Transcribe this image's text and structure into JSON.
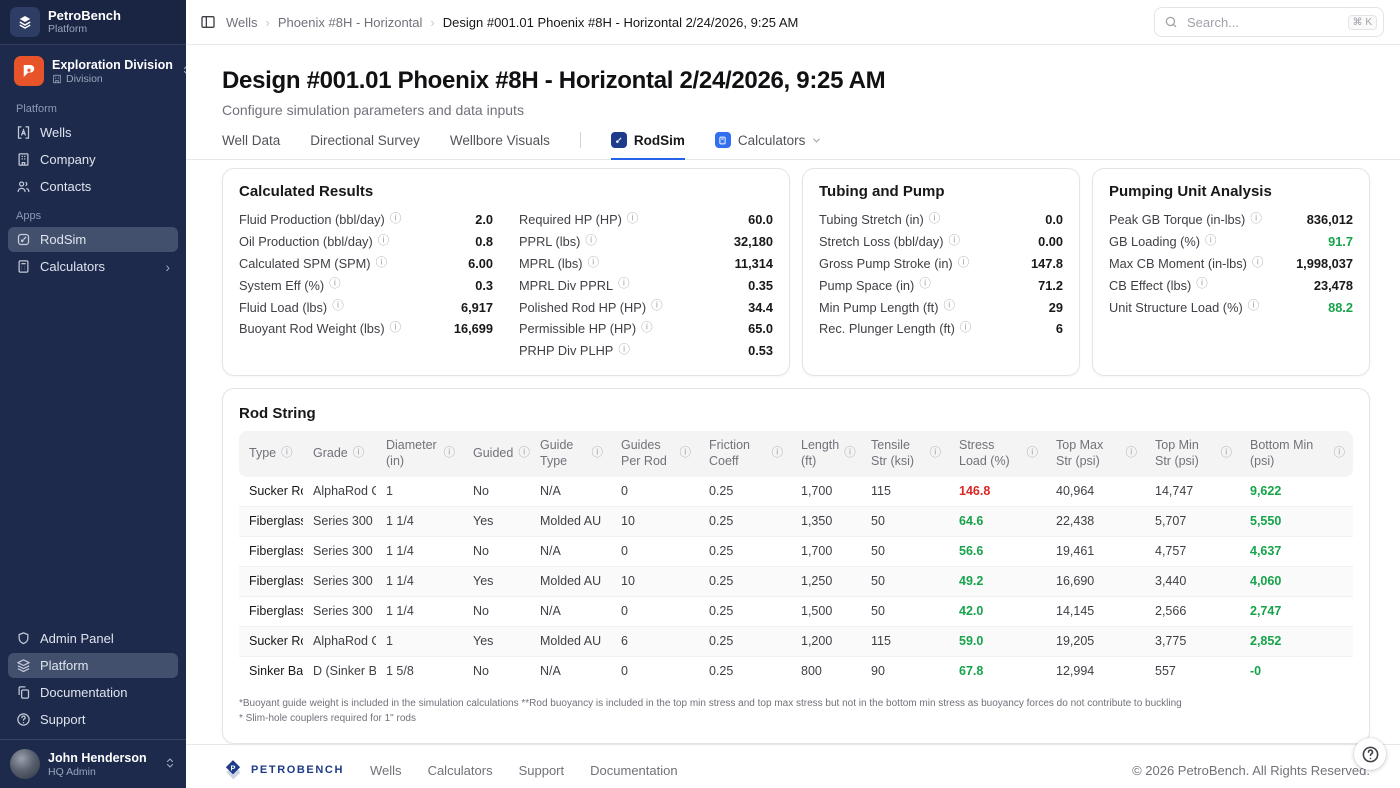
{
  "sidebar": {
    "brand": {
      "name": "PetroBench",
      "subtitle": "Platform"
    },
    "team": {
      "name": "Exploration Division",
      "type": "Division"
    },
    "groups": [
      {
        "label": "Platform",
        "items": [
          {
            "label": "Wells"
          },
          {
            "label": "Company"
          },
          {
            "label": "Contacts"
          }
        ]
      },
      {
        "label": "Apps",
        "items": [
          {
            "label": "RodSim"
          },
          {
            "label": "Calculators"
          }
        ]
      }
    ],
    "footer_items": [
      {
        "label": "Admin Panel"
      },
      {
        "label": "Platform"
      },
      {
        "label": "Documentation"
      },
      {
        "label": "Support"
      }
    ],
    "user": {
      "name": "John Henderson",
      "role": "HQ Admin"
    }
  },
  "topbar": {
    "breadcrumbs": [
      {
        "label": "Wells"
      },
      {
        "label": "Phoenix #8H - Horizontal"
      },
      {
        "label": "Design #001.01 Phoenix #8H - Horizontal 2/24/2026, 9:25 AM"
      }
    ],
    "search": {
      "placeholder": "Search...",
      "shortcut": "⌘ K"
    }
  },
  "header": {
    "title": "Design #001.01 Phoenix #8H - Horizontal 2/24/2026, 9:25 AM",
    "subtitle": "Configure simulation parameters and data inputs",
    "tabs": [
      {
        "label": "Well Data"
      },
      {
        "label": "Directional Survey"
      },
      {
        "label": "Wellbore Visuals"
      },
      {
        "label": "RodSim"
      },
      {
        "label": "Calculators"
      }
    ]
  },
  "panels": {
    "calculated_results": {
      "title": "Calculated Results",
      "left": [
        {
          "label": "Fluid Production (bbl/day)",
          "value": "2.0"
        },
        {
          "label": "Oil Production (bbl/day)",
          "value": "0.8"
        },
        {
          "label": "Calculated SPM (SPM)",
          "value": "6.00"
        },
        {
          "label": "System Eff (%)",
          "value": "0.3"
        },
        {
          "label": "Fluid Load (lbs)",
          "value": "6,917"
        },
        {
          "label": "Buoyant Rod Weight (lbs)",
          "value": "16,699"
        }
      ],
      "right": [
        {
          "label": "Required HP (HP)",
          "value": "60.0"
        },
        {
          "label": "PPRL (lbs)",
          "value": "32,180"
        },
        {
          "label": "MPRL (lbs)",
          "value": "11,314"
        },
        {
          "label": "MPRL Div PPRL",
          "value": "0.35"
        },
        {
          "label": "Polished Rod HP (HP)",
          "value": "34.4"
        },
        {
          "label": "Permissible HP (HP)",
          "value": "65.0"
        },
        {
          "label": "PRHP Div PLHP",
          "value": "0.53"
        }
      ]
    },
    "tubing_pump": {
      "title": "Tubing and Pump",
      "rows": [
        {
          "label": "Tubing Stretch (in)",
          "value": "0.0"
        },
        {
          "label": "Stretch Loss (bbl/day)",
          "value": "0.00"
        },
        {
          "label": "Gross Pump Stroke (in)",
          "value": "147.8"
        },
        {
          "label": "Pump Space (in)",
          "value": "71.2"
        },
        {
          "label": "Min Pump Length (ft)",
          "value": "29"
        },
        {
          "label": "Rec. Plunger Length (ft)",
          "value": "6"
        }
      ]
    },
    "pumping_unit": {
      "title": "Pumping Unit Analysis",
      "rows": [
        {
          "label": "Peak GB Torque (in-lbs)",
          "value": "836,012"
        },
        {
          "label": "GB Loading (%)",
          "value": "91.7",
          "color": "green"
        },
        {
          "label": "Max CB Moment (in-lbs)",
          "value": "1,998,037"
        },
        {
          "label": "CB Effect (lbs)",
          "value": "23,478"
        },
        {
          "label": "Unit Structure Load (%)",
          "value": "88.2",
          "color": "green"
        }
      ]
    }
  },
  "rod_string": {
    "title": "Rod String",
    "columns": [
      "Type",
      "Grade",
      "Diameter (in)",
      "Guided",
      "Guide Type",
      "Guides Per Rod",
      "Friction Coeff",
      "Length (ft)",
      "Tensile Str (ksi)",
      "Stress Load (%)",
      "Top Max Str (psi)",
      "Top Min Str (psi)",
      "Bottom Min (psi)"
    ],
    "rows": [
      {
        "cells": [
          "Sucker Rod",
          "AlphaRod CS",
          "1",
          "No",
          "N/A",
          "0",
          "0.25",
          "1,700",
          "115",
          "146.8",
          "40,964",
          "14,747",
          "9,622"
        ],
        "stress_color": "red"
      },
      {
        "cells": [
          "Fiberglass",
          "Series 300",
          "1 1/4",
          "Yes",
          "Molded AU",
          "10",
          "0.25",
          "1,350",
          "50",
          "64.6",
          "22,438",
          "5,707",
          "5,550"
        ],
        "stress_color": "green"
      },
      {
        "cells": [
          "Fiberglass",
          "Series 300",
          "1 1/4",
          "No",
          "N/A",
          "0",
          "0.25",
          "1,700",
          "50",
          "56.6",
          "19,461",
          "4,757",
          "4,637"
        ],
        "stress_color": "green"
      },
      {
        "cells": [
          "Fiberglass",
          "Series 300",
          "1 1/4",
          "Yes",
          "Molded AU",
          "10",
          "0.25",
          "1,250",
          "50",
          "49.2",
          "16,690",
          "3,440",
          "4,060"
        ],
        "stress_color": "green"
      },
      {
        "cells": [
          "Fiberglass",
          "Series 300",
          "1 1/4",
          "No",
          "N/A",
          "0",
          "0.25",
          "1,500",
          "50",
          "42.0",
          "14,145",
          "2,566",
          "2,747"
        ],
        "stress_color": "green"
      },
      {
        "cells": [
          "Sucker Rod",
          "AlphaRod CS",
          "1",
          "Yes",
          "Molded AU",
          "6",
          "0.25",
          "1,200",
          "115",
          "59.0",
          "19,205",
          "3,775",
          "2,852"
        ],
        "stress_color": "green"
      },
      {
        "cells": [
          "Sinker Bar",
          "D (Sinker Bar)",
          "1 5/8",
          "No",
          "N/A",
          "0",
          "0.25",
          "800",
          "90",
          "67.8",
          "12,994",
          "557",
          "-0"
        ],
        "stress_color": "green"
      }
    ],
    "footnotes": [
      "*Buoyant guide weight is included in the simulation calculations **Rod buoyancy is included in the top min stress and top max stress but not in the bottom min stress as buoyancy forces do not contribute to buckling",
      "* Slim-hole couplers required for 1\" rods"
    ]
  },
  "footer": {
    "brand": "PETROBENCH",
    "links": [
      {
        "label": "Wells"
      },
      {
        "label": "Calculators"
      },
      {
        "label": "Support"
      },
      {
        "label": "Documentation"
      }
    ],
    "copyright": "© 2026 PetroBench. All Rights Reserved."
  },
  "colors": {
    "sidebar_bg": "#1d2a4b",
    "accent_blue": "#2563eb",
    "team_orange": "#e8542a",
    "good_green": "#16a34a",
    "alert_red": "#dc2626",
    "navy_icon": "#1e3a8a"
  }
}
